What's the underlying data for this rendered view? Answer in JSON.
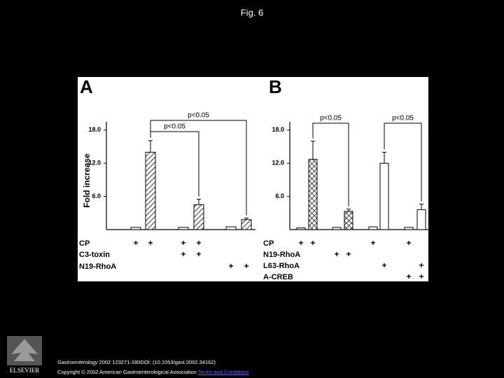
{
  "title": "Fig. 6",
  "chart_data": [
    {
      "type": "bar",
      "panel": "A",
      "y_label": "Fold increase",
      "ylim": [
        0,
        19.5
      ],
      "yticks": [
        {
          "value": 6,
          "label": "6.0"
        },
        {
          "value": 12,
          "label": "12.0"
        },
        {
          "value": 18,
          "label": "18.0"
        }
      ],
      "values": [
        0.4,
        14,
        0.4,
        4.5,
        0.5,
        1.8
      ],
      "errors": [
        null,
        2.1,
        null,
        1.0,
        null,
        0.3
      ],
      "patterns": [
        "open",
        "hatch",
        "open",
        "hatch",
        "open",
        "hatch"
      ],
      "conditions": [
        {
          "label": "CP",
          "marks": [
            "+",
            "+",
            "+",
            "+",
            null,
            null
          ]
        },
        {
          "label": "C3-toxin",
          "marks": [
            null,
            null,
            "+",
            "+",
            null,
            null
          ]
        },
        {
          "label": "N19-RhoA",
          "marks": [
            null,
            null,
            null,
            null,
            "+",
            "+"
          ]
        }
      ],
      "brackets": [
        {
          "label": "p<0.05",
          "from": 1,
          "to": 5
        },
        {
          "label": "p<0.05",
          "from": 1,
          "to": 3
        }
      ]
    },
    {
      "type": "bar",
      "panel": "B",
      "ylim": [
        0,
        19.5
      ],
      "yticks": [
        {
          "value": 6,
          "label": "6.0"
        },
        {
          "value": 12,
          "label": "12.0"
        },
        {
          "value": 18,
          "label": "18.0"
        }
      ],
      "values": [
        0.3,
        12.7,
        0.4,
        3.3,
        0.5,
        12,
        0.4,
        3.6
      ],
      "errors": [
        null,
        3.3,
        null,
        0.4,
        null,
        2.0,
        null,
        1.0
      ],
      "patterns": [
        "open",
        "cross",
        "open",
        "cross",
        "open",
        "open",
        "open",
        "open"
      ],
      "conditions": [
        {
          "label": "CP",
          "marks": [
            "+",
            "+",
            null,
            null,
            "+",
            null,
            "+",
            null
          ]
        },
        {
          "label": "N19-RhoA",
          "marks": [
            null,
            null,
            "+",
            "+",
            null,
            null,
            null,
            null
          ]
        },
        {
          "label": "L63-RhoA",
          "marks": [
            null,
            null,
            null,
            null,
            null,
            "+",
            null,
            "+"
          ]
        },
        {
          "label": "A-CREB",
          "marks": [
            null,
            null,
            null,
            null,
            null,
            null,
            "+",
            "+"
          ]
        }
      ],
      "brackets": [
        {
          "label": "p<0.05",
          "from": 1,
          "to": 3
        },
        {
          "label": "p<0.05",
          "from": 5,
          "to": 7
        }
      ]
    }
  ],
  "footer": {
    "journal": "Gastroenterology",
    "citation": " 2002 123271-280DOI: (10.1053/gast.2002.34162) ",
    "copyright": "Copyright © 2002 American Gastroenterological Association ",
    "link": "Terms and Conditions"
  },
  "logo_text": "ELSEVIER"
}
